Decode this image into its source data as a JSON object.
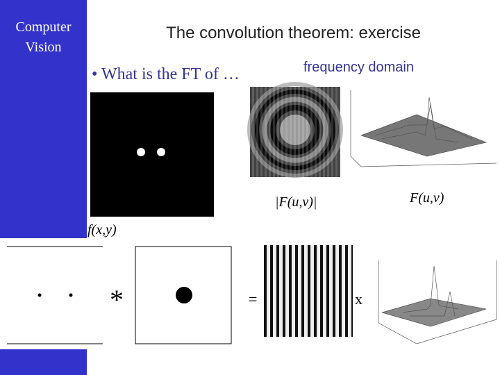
{
  "sidebar": {
    "lines": [
      "Computer",
      "Vision"
    ]
  },
  "title": "The convolution theorem: exercise",
  "bullet": "What is the FT of …",
  "frequency_label": "frequency domain",
  "labels": {
    "magnitude": "|F(u,v)|",
    "transform": "F(u,v)",
    "signal": "f(x,y)",
    "convolve": "*",
    "equals": "=",
    "times": "x"
  }
}
